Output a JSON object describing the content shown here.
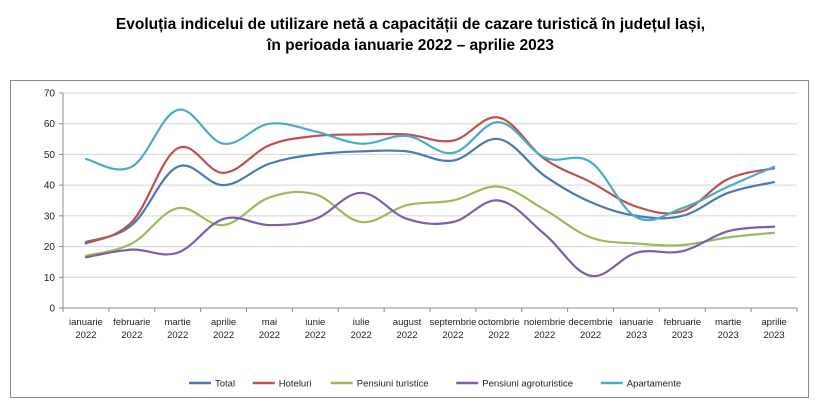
{
  "chart_data": {
    "type": "line",
    "title_line1": "Evoluția indicelui de utilizare netă a capacității de cazare turistică în județul Iași,",
    "title_line2": "în perioada ianuarie 2022 – aprilie 2023",
    "categories": [
      [
        "ianuarie",
        "2022"
      ],
      [
        "februarie",
        "2022"
      ],
      [
        "martie",
        "2022"
      ],
      [
        "aprilie",
        "2022"
      ],
      [
        "mai",
        "2022"
      ],
      [
        "iunie",
        "2022"
      ],
      [
        "iulie",
        "2022"
      ],
      [
        "august",
        "2022"
      ],
      [
        "septembrie",
        "2022"
      ],
      [
        "octombrie",
        "2022"
      ],
      [
        "noiembrie",
        "2022"
      ],
      [
        "decembrie",
        "2022"
      ],
      [
        "ianuarie",
        "2023"
      ],
      [
        "februarie",
        "2023"
      ],
      [
        "martie",
        "2023"
      ],
      [
        "aprilie",
        "2023"
      ]
    ],
    "ylim": [
      0,
      70
    ],
    "yticks": [
      0,
      10,
      20,
      30,
      40,
      50,
      60,
      70
    ],
    "grid": true,
    "legend_position": "bottom",
    "series": [
      {
        "name": "Total",
        "color": "#4a7ab5",
        "values": [
          21.5,
          27,
          46,
          40,
          47,
          50,
          51,
          51,
          48,
          55,
          43,
          34.5,
          30,
          30,
          37.5,
          41
        ]
      },
      {
        "name": "Hoteluri",
        "color": "#c0504d",
        "values": [
          21,
          28,
          52,
          44,
          53,
          56,
          56.5,
          56.5,
          54.5,
          62,
          48.5,
          41,
          33,
          31.5,
          42,
          45.5
        ]
      },
      {
        "name": "Pensiuni turistice",
        "color": "#9bbb59",
        "values": [
          17,
          21,
          32.5,
          27,
          36,
          37,
          28,
          33.5,
          35,
          39.5,
          32,
          23,
          21,
          20.5,
          23,
          24.5
        ]
      },
      {
        "name": "Pensiuni agroturistice",
        "color": "#7e5ea8",
        "values": [
          16.5,
          19,
          18,
          29,
          27,
          29,
          37.5,
          29,
          28,
          35,
          24,
          10.5,
          18,
          18.5,
          25,
          26.5
        ]
      },
      {
        "name": "Apartamente",
        "color": "#4bacc6",
        "values": [
          48.5,
          46,
          64.5,
          53.5,
          60,
          57.5,
          53.5,
          56,
          50.5,
          60.5,
          49,
          47.5,
          29.5,
          32.5,
          39.5,
          46
        ]
      }
    ]
  }
}
